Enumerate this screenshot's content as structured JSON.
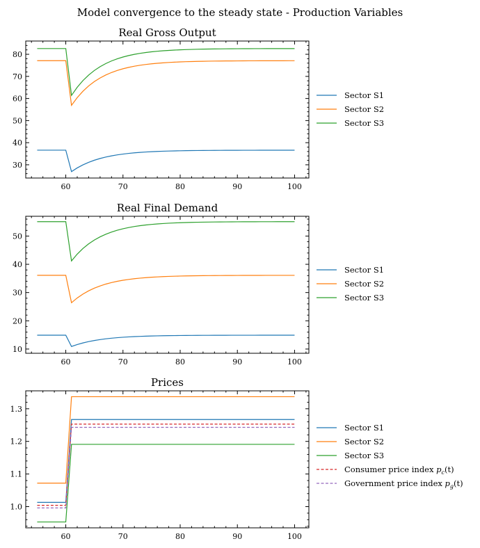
{
  "figure": {
    "suptitle": "Model convergence to the steady state - Production Variables"
  },
  "chart_data": [
    {
      "type": "line",
      "title": "Real Gross Output",
      "xlabel": "",
      "ylabel": "",
      "xlim": [
        53,
        102.5
      ],
      "ylim": [
        24,
        86
      ],
      "xticks": [
        60,
        70,
        80,
        90,
        100
      ],
      "yticks": [
        30,
        40,
        50,
        60,
        70,
        80
      ],
      "legend_placement": "right",
      "series": [
        {
          "name": "Sector S1",
          "color": "#1f77b4",
          "dash": "solid",
          "shock_at": 61,
          "pre": 36.6,
          "drop": 26.9,
          "steady": 36.6,
          "rate": 0.19
        },
        {
          "name": "Sector S2",
          "color": "#ff7f0e",
          "dash": "solid",
          "shock_at": 61,
          "pre": 77.1,
          "drop": 56.9,
          "steady": 77.1,
          "rate": 0.19
        },
        {
          "name": "Sector S3",
          "color": "#2ca02c",
          "dash": "solid",
          "shock_at": 61,
          "pre": 82.6,
          "drop": 61.4,
          "steady": 82.6,
          "rate": 0.19
        }
      ]
    },
    {
      "type": "line",
      "title": "Real Final Demand",
      "xlabel": "",
      "ylabel": "",
      "xlim": [
        53,
        102.5
      ],
      "ylim": [
        8.5,
        57
      ],
      "xticks": [
        60,
        70,
        80,
        90,
        100
      ],
      "yticks": [
        10,
        20,
        30,
        40,
        50
      ],
      "legend_placement": "right",
      "series": [
        {
          "name": "Sector S1",
          "color": "#1f77b4",
          "dash": "solid",
          "shock_at": 61,
          "pre": 14.9,
          "drop": 10.9,
          "steady": 14.9,
          "rate": 0.19
        },
        {
          "name": "Sector S2",
          "color": "#ff7f0e",
          "dash": "solid",
          "shock_at": 61,
          "pre": 36.1,
          "drop": 26.4,
          "steady": 36.1,
          "rate": 0.19
        },
        {
          "name": "Sector S3",
          "color": "#2ca02c",
          "dash": "solid",
          "shock_at": 61,
          "pre": 55.1,
          "drop": 41.2,
          "steady": 55.1,
          "rate": 0.19
        }
      ]
    },
    {
      "type": "line",
      "title": "Prices",
      "xlabel": "",
      "ylabel": "",
      "xlim": [
        53,
        102.5
      ],
      "ylim": [
        0.935,
        1.355
      ],
      "xticks": [
        60,
        70,
        80,
        90,
        100
      ],
      "yticks": [
        "1.0",
        "1.1",
        "1.2",
        "1.3"
      ],
      "legend_placement": "right",
      "series": [
        {
          "name": "Sector S1",
          "color": "#1f77b4",
          "dash": "solid",
          "shock_at": 61,
          "pre": 1.013,
          "post": 1.267
        },
        {
          "name": "Sector S2",
          "color": "#ff7f0e",
          "dash": "solid",
          "shock_at": 61,
          "pre": 1.072,
          "post": 1.337
        },
        {
          "name": "Sector S3",
          "color": "#2ca02c",
          "dash": "solid",
          "shock_at": 61,
          "pre": 0.953,
          "post": 1.191
        },
        {
          "name": "Consumer price index",
          "math": "p",
          "math_sub": "c",
          "math_tail": "(t)",
          "color": "#d62728",
          "dash": "dashed",
          "shock_at": 61,
          "pre": 1.004,
          "post": 1.253
        },
        {
          "name": "Government price index",
          "math": "p",
          "math_sub": "g",
          "math_tail": "(t)",
          "color": "#9467bd",
          "dash": "dashed",
          "shock_at": 61,
          "pre": 0.996,
          "post": 1.243
        }
      ]
    }
  ],
  "x_start": 55,
  "x_end": 100
}
